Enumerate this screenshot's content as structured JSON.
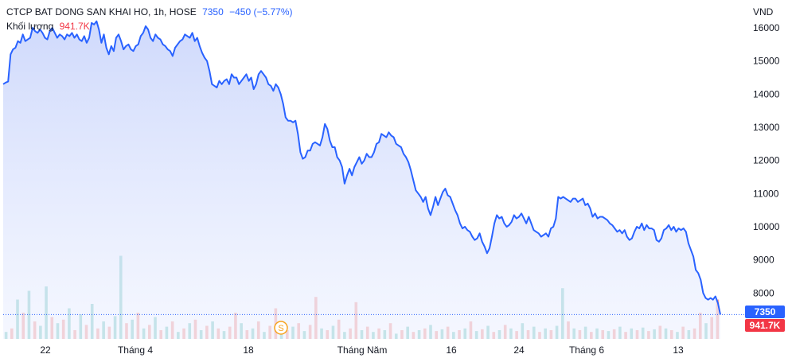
{
  "legend": {
    "symbol": "CTCP BAT DONG SAN KHAI HO, 1h, HOSE",
    "last_price": "7350",
    "change": "−450 (−5.77%)",
    "volume_label": "Khối lượng",
    "volume_value": "941.7K"
  },
  "currency": "VND",
  "price_tag": "7350",
  "volume_tag": "941.7K",
  "marker_label": "S",
  "colors": {
    "line": "#2962ff",
    "area_top": "#c7d3fb",
    "area_bottom": "#eef2ff",
    "volume_up": "#26a69a",
    "volume_down": "#ef5350",
    "marker": "#f7a21b"
  },
  "chart_data": {
    "type": "area",
    "ylim": [
      7000,
      16600
    ],
    "yticks": [
      8000,
      9000,
      10000,
      11000,
      12000,
      13000,
      14000,
      15000,
      16000
    ],
    "xticks": [
      "22",
      "Tháng 4",
      "18",
      "Tháng Năm",
      "16",
      "24",
      "Tháng 6",
      "13"
    ],
    "grid": false,
    "series": [
      {
        "values": [
          14300,
          14350,
          14380,
          15200,
          15350,
          15400,
          15600,
          15550,
          15800,
          15600,
          15650,
          15700,
          16000,
          15900,
          15850,
          15950,
          15850,
          15700,
          15650,
          15900,
          16000,
          15850,
          15700,
          15800,
          15750,
          15650,
          15800,
          15750,
          15850,
          15700,
          15800,
          15650,
          15600,
          15750,
          15550,
          15700,
          16150,
          16100,
          16200,
          15950,
          15550,
          15800,
          15400,
          15200,
          15450,
          15300,
          15700,
          15800,
          15600,
          15350,
          15450,
          15500,
          15350,
          15300,
          15450,
          15500,
          15750,
          15850,
          16050,
          15950,
          15700,
          15600,
          15800,
          15700,
          15650,
          15500,
          15450,
          15350,
          15300,
          15150,
          15400,
          15500,
          15600,
          15650,
          15800,
          15750,
          15700,
          15850,
          15600,
          15700,
          15450,
          15250,
          15100,
          15000,
          14700,
          14300,
          14250,
          14200,
          14400,
          14300,
          14400,
          14450,
          14300,
          14600,
          14500,
          14500,
          14300,
          14400,
          14500,
          14600,
          14400,
          14500,
          14150,
          14300,
          14600,
          14700,
          14600,
          14500,
          14300,
          14250,
          14100,
          14300,
          14200,
          14000,
          13700,
          13300,
          13200,
          13200,
          13150,
          13200,
          12800,
          12250,
          12050,
          12100,
          12300,
          12300,
          12500,
          12550,
          12500,
          12450,
          12700,
          13100,
          12950,
          12600,
          12400,
          12400,
          12100,
          12000,
          11800,
          11300,
          11550,
          11750,
          11550,
          11800,
          11950,
          12100,
          11900,
          12000,
          12200,
          12100,
          12100,
          12250,
          12500,
          12550,
          12800,
          12750,
          12700,
          12850,
          12750,
          12700,
          12500,
          12450,
          12400,
          12200,
          12100,
          11950,
          11700,
          11400,
          11100,
          11000,
          10900,
          10750,
          10900,
          10550,
          10350,
          10600,
          10900,
          10650,
          10850,
          11050,
          11150,
          10950,
          10900,
          10700,
          10500,
          10350,
          10100,
          9950,
          10000,
          9900,
          9850,
          9700,
          9600,
          9650,
          9800,
          9550,
          9400,
          9200,
          9350,
          9700,
          10100,
          10350,
          10250,
          10300,
          10100,
          10000,
          10050,
          10150,
          10350,
          10250,
          10300,
          10400,
          10250,
          10100,
          10300,
          10100,
          9900,
          9850,
          9800,
          9700,
          9750,
          9800,
          9700,
          9950,
          10000,
          10250,
          10900,
          10850,
          10900,
          10850,
          10800,
          10750,
          10850,
          10850,
          10750,
          10800,
          10850,
          10650,
          10700,
          10550,
          10300,
          10400,
          10250,
          10300,
          10300,
          10250,
          10200,
          10100,
          10050,
          9950,
          9850,
          9900,
          9800,
          9900,
          9700,
          9600,
          9650,
          9850,
          10000,
          9950,
          10100,
          9900,
          10050,
          9950,
          9950,
          9900,
          9600,
          9550,
          9650,
          9900,
          9950,
          10050,
          9900,
          10000,
          9850,
          9950,
          9900,
          9950,
          9850,
          9500,
          9300,
          9100,
          8700,
          8600,
          8400,
          8000,
          7850,
          7800,
          7850,
          7800,
          7900,
          7700,
          7350
        ]
      }
    ],
    "volume": [
      {
        "value_rel": 0.08,
        "dir": "up"
      },
      {
        "value_rel": 0.12,
        "dir": "down"
      },
      {
        "value_rel": 0.45,
        "dir": "up"
      },
      {
        "value_rel": 0.3,
        "dir": "down"
      },
      {
        "value_rel": 0.55,
        "dir": "up"
      },
      {
        "value_rel": 0.2,
        "dir": "down"
      },
      {
        "value_rel": 0.15,
        "dir": "up"
      },
      {
        "value_rel": 0.6,
        "dir": "up"
      },
      {
        "value_rel": 0.25,
        "dir": "down"
      },
      {
        "value_rel": 0.18,
        "dir": "up"
      },
      {
        "value_rel": 0.22,
        "dir": "down"
      },
      {
        "value_rel": 0.35,
        "dir": "up"
      },
      {
        "value_rel": 0.1,
        "dir": "down"
      },
      {
        "value_rel": 0.28,
        "dir": "up"
      },
      {
        "value_rel": 0.16,
        "dir": "down"
      },
      {
        "value_rel": 0.4,
        "dir": "up"
      },
      {
        "value_rel": 0.12,
        "dir": "down"
      },
      {
        "value_rel": 0.2,
        "dir": "up"
      },
      {
        "value_rel": 0.14,
        "dir": "down"
      },
      {
        "value_rel": 0.26,
        "dir": "up"
      },
      {
        "value_rel": 0.95,
        "dir": "up"
      },
      {
        "value_rel": 0.18,
        "dir": "down"
      },
      {
        "value_rel": 0.22,
        "dir": "up"
      },
      {
        "value_rel": 0.3,
        "dir": "down"
      },
      {
        "value_rel": 0.12,
        "dir": "up"
      },
      {
        "value_rel": 0.16,
        "dir": "down"
      },
      {
        "value_rel": 0.25,
        "dir": "up"
      },
      {
        "value_rel": 0.1,
        "dir": "down"
      },
      {
        "value_rel": 0.14,
        "dir": "up"
      },
      {
        "value_rel": 0.2,
        "dir": "down"
      },
      {
        "value_rel": 0.08,
        "dir": "up"
      },
      {
        "value_rel": 0.12,
        "dir": "down"
      },
      {
        "value_rel": 0.18,
        "dir": "up"
      },
      {
        "value_rel": 0.22,
        "dir": "down"
      },
      {
        "value_rel": 0.1,
        "dir": "up"
      },
      {
        "value_rel": 0.15,
        "dir": "down"
      },
      {
        "value_rel": 0.2,
        "dir": "up"
      },
      {
        "value_rel": 0.12,
        "dir": "down"
      },
      {
        "value_rel": 0.09,
        "dir": "up"
      },
      {
        "value_rel": 0.14,
        "dir": "down"
      },
      {
        "value_rel": 0.3,
        "dir": "down"
      },
      {
        "value_rel": 0.18,
        "dir": "up"
      },
      {
        "value_rel": 0.1,
        "dir": "down"
      },
      {
        "value_rel": 0.12,
        "dir": "up"
      },
      {
        "value_rel": 0.2,
        "dir": "down"
      },
      {
        "value_rel": 0.08,
        "dir": "up"
      },
      {
        "value_rel": 0.15,
        "dir": "down"
      },
      {
        "value_rel": 0.35,
        "dir": "down"
      },
      {
        "value_rel": 0.12,
        "dir": "up"
      },
      {
        "value_rel": 0.1,
        "dir": "down"
      },
      {
        "value_rel": 0.14,
        "dir": "up"
      },
      {
        "value_rel": 0.18,
        "dir": "down"
      },
      {
        "value_rel": 0.09,
        "dir": "up"
      },
      {
        "value_rel": 0.16,
        "dir": "down"
      },
      {
        "value_rel": 0.48,
        "dir": "down"
      },
      {
        "value_rel": 0.12,
        "dir": "up"
      },
      {
        "value_rel": 0.1,
        "dir": "down"
      },
      {
        "value_rel": 0.15,
        "dir": "up"
      },
      {
        "value_rel": 0.22,
        "dir": "down"
      },
      {
        "value_rel": 0.08,
        "dir": "up"
      },
      {
        "value_rel": 0.12,
        "dir": "down"
      },
      {
        "value_rel": 0.42,
        "dir": "down"
      },
      {
        "value_rel": 0.1,
        "dir": "up"
      },
      {
        "value_rel": 0.14,
        "dir": "down"
      },
      {
        "value_rel": 0.08,
        "dir": "up"
      },
      {
        "value_rel": 0.12,
        "dir": "down"
      },
      {
        "value_rel": 0.1,
        "dir": "up"
      },
      {
        "value_rel": 0.18,
        "dir": "down"
      },
      {
        "value_rel": 0.06,
        "dir": "up"
      },
      {
        "value_rel": 0.1,
        "dir": "down"
      },
      {
        "value_rel": 0.14,
        "dir": "up"
      },
      {
        "value_rel": 0.08,
        "dir": "down"
      },
      {
        "value_rel": 0.1,
        "dir": "up"
      },
      {
        "value_rel": 0.12,
        "dir": "down"
      },
      {
        "value_rel": 0.16,
        "dir": "up"
      },
      {
        "value_rel": 0.09,
        "dir": "down"
      },
      {
        "value_rel": 0.11,
        "dir": "up"
      },
      {
        "value_rel": 0.14,
        "dir": "down"
      },
      {
        "value_rel": 0.08,
        "dir": "up"
      },
      {
        "value_rel": 0.1,
        "dir": "down"
      },
      {
        "value_rel": 0.12,
        "dir": "up"
      },
      {
        "value_rel": 0.2,
        "dir": "down"
      },
      {
        "value_rel": 0.09,
        "dir": "up"
      },
      {
        "value_rel": 0.11,
        "dir": "down"
      },
      {
        "value_rel": 0.15,
        "dir": "up"
      },
      {
        "value_rel": 0.08,
        "dir": "down"
      },
      {
        "value_rel": 0.1,
        "dir": "up"
      },
      {
        "value_rel": 0.16,
        "dir": "down"
      },
      {
        "value_rel": 0.12,
        "dir": "up"
      },
      {
        "value_rel": 0.09,
        "dir": "down"
      },
      {
        "value_rel": 0.18,
        "dir": "up"
      },
      {
        "value_rel": 0.1,
        "dir": "down"
      },
      {
        "value_rel": 0.14,
        "dir": "up"
      },
      {
        "value_rel": 0.08,
        "dir": "down"
      },
      {
        "value_rel": 0.12,
        "dir": "up"
      },
      {
        "value_rel": 0.1,
        "dir": "down"
      },
      {
        "value_rel": 0.15,
        "dir": "up"
      },
      {
        "value_rel": 0.58,
        "dir": "up"
      },
      {
        "value_rel": 0.2,
        "dir": "down"
      },
      {
        "value_rel": 0.12,
        "dir": "up"
      },
      {
        "value_rel": 0.1,
        "dir": "down"
      },
      {
        "value_rel": 0.14,
        "dir": "up"
      },
      {
        "value_rel": 0.08,
        "dir": "down"
      },
      {
        "value_rel": 0.12,
        "dir": "up"
      },
      {
        "value_rel": 0.1,
        "dir": "down"
      },
      {
        "value_rel": 0.09,
        "dir": "up"
      },
      {
        "value_rel": 0.11,
        "dir": "down"
      },
      {
        "value_rel": 0.14,
        "dir": "up"
      },
      {
        "value_rel": 0.08,
        "dir": "down"
      },
      {
        "value_rel": 0.12,
        "dir": "up"
      },
      {
        "value_rel": 0.1,
        "dir": "down"
      },
      {
        "value_rel": 0.13,
        "dir": "up"
      },
      {
        "value_rel": 0.09,
        "dir": "down"
      },
      {
        "value_rel": 0.11,
        "dir": "up"
      },
      {
        "value_rel": 0.15,
        "dir": "down"
      },
      {
        "value_rel": 0.12,
        "dir": "up"
      },
      {
        "value_rel": 0.1,
        "dir": "down"
      },
      {
        "value_rel": 0.08,
        "dir": "up"
      },
      {
        "value_rel": 0.14,
        "dir": "down"
      },
      {
        "value_rel": 0.1,
        "dir": "up"
      },
      {
        "value_rel": 0.12,
        "dir": "down"
      },
      {
        "value_rel": 0.3,
        "dir": "down"
      },
      {
        "value_rel": 0.18,
        "dir": "up"
      },
      {
        "value_rel": 0.25,
        "dir": "down"
      },
      {
        "value_rel": 0.45,
        "dir": "down"
      }
    ]
  }
}
